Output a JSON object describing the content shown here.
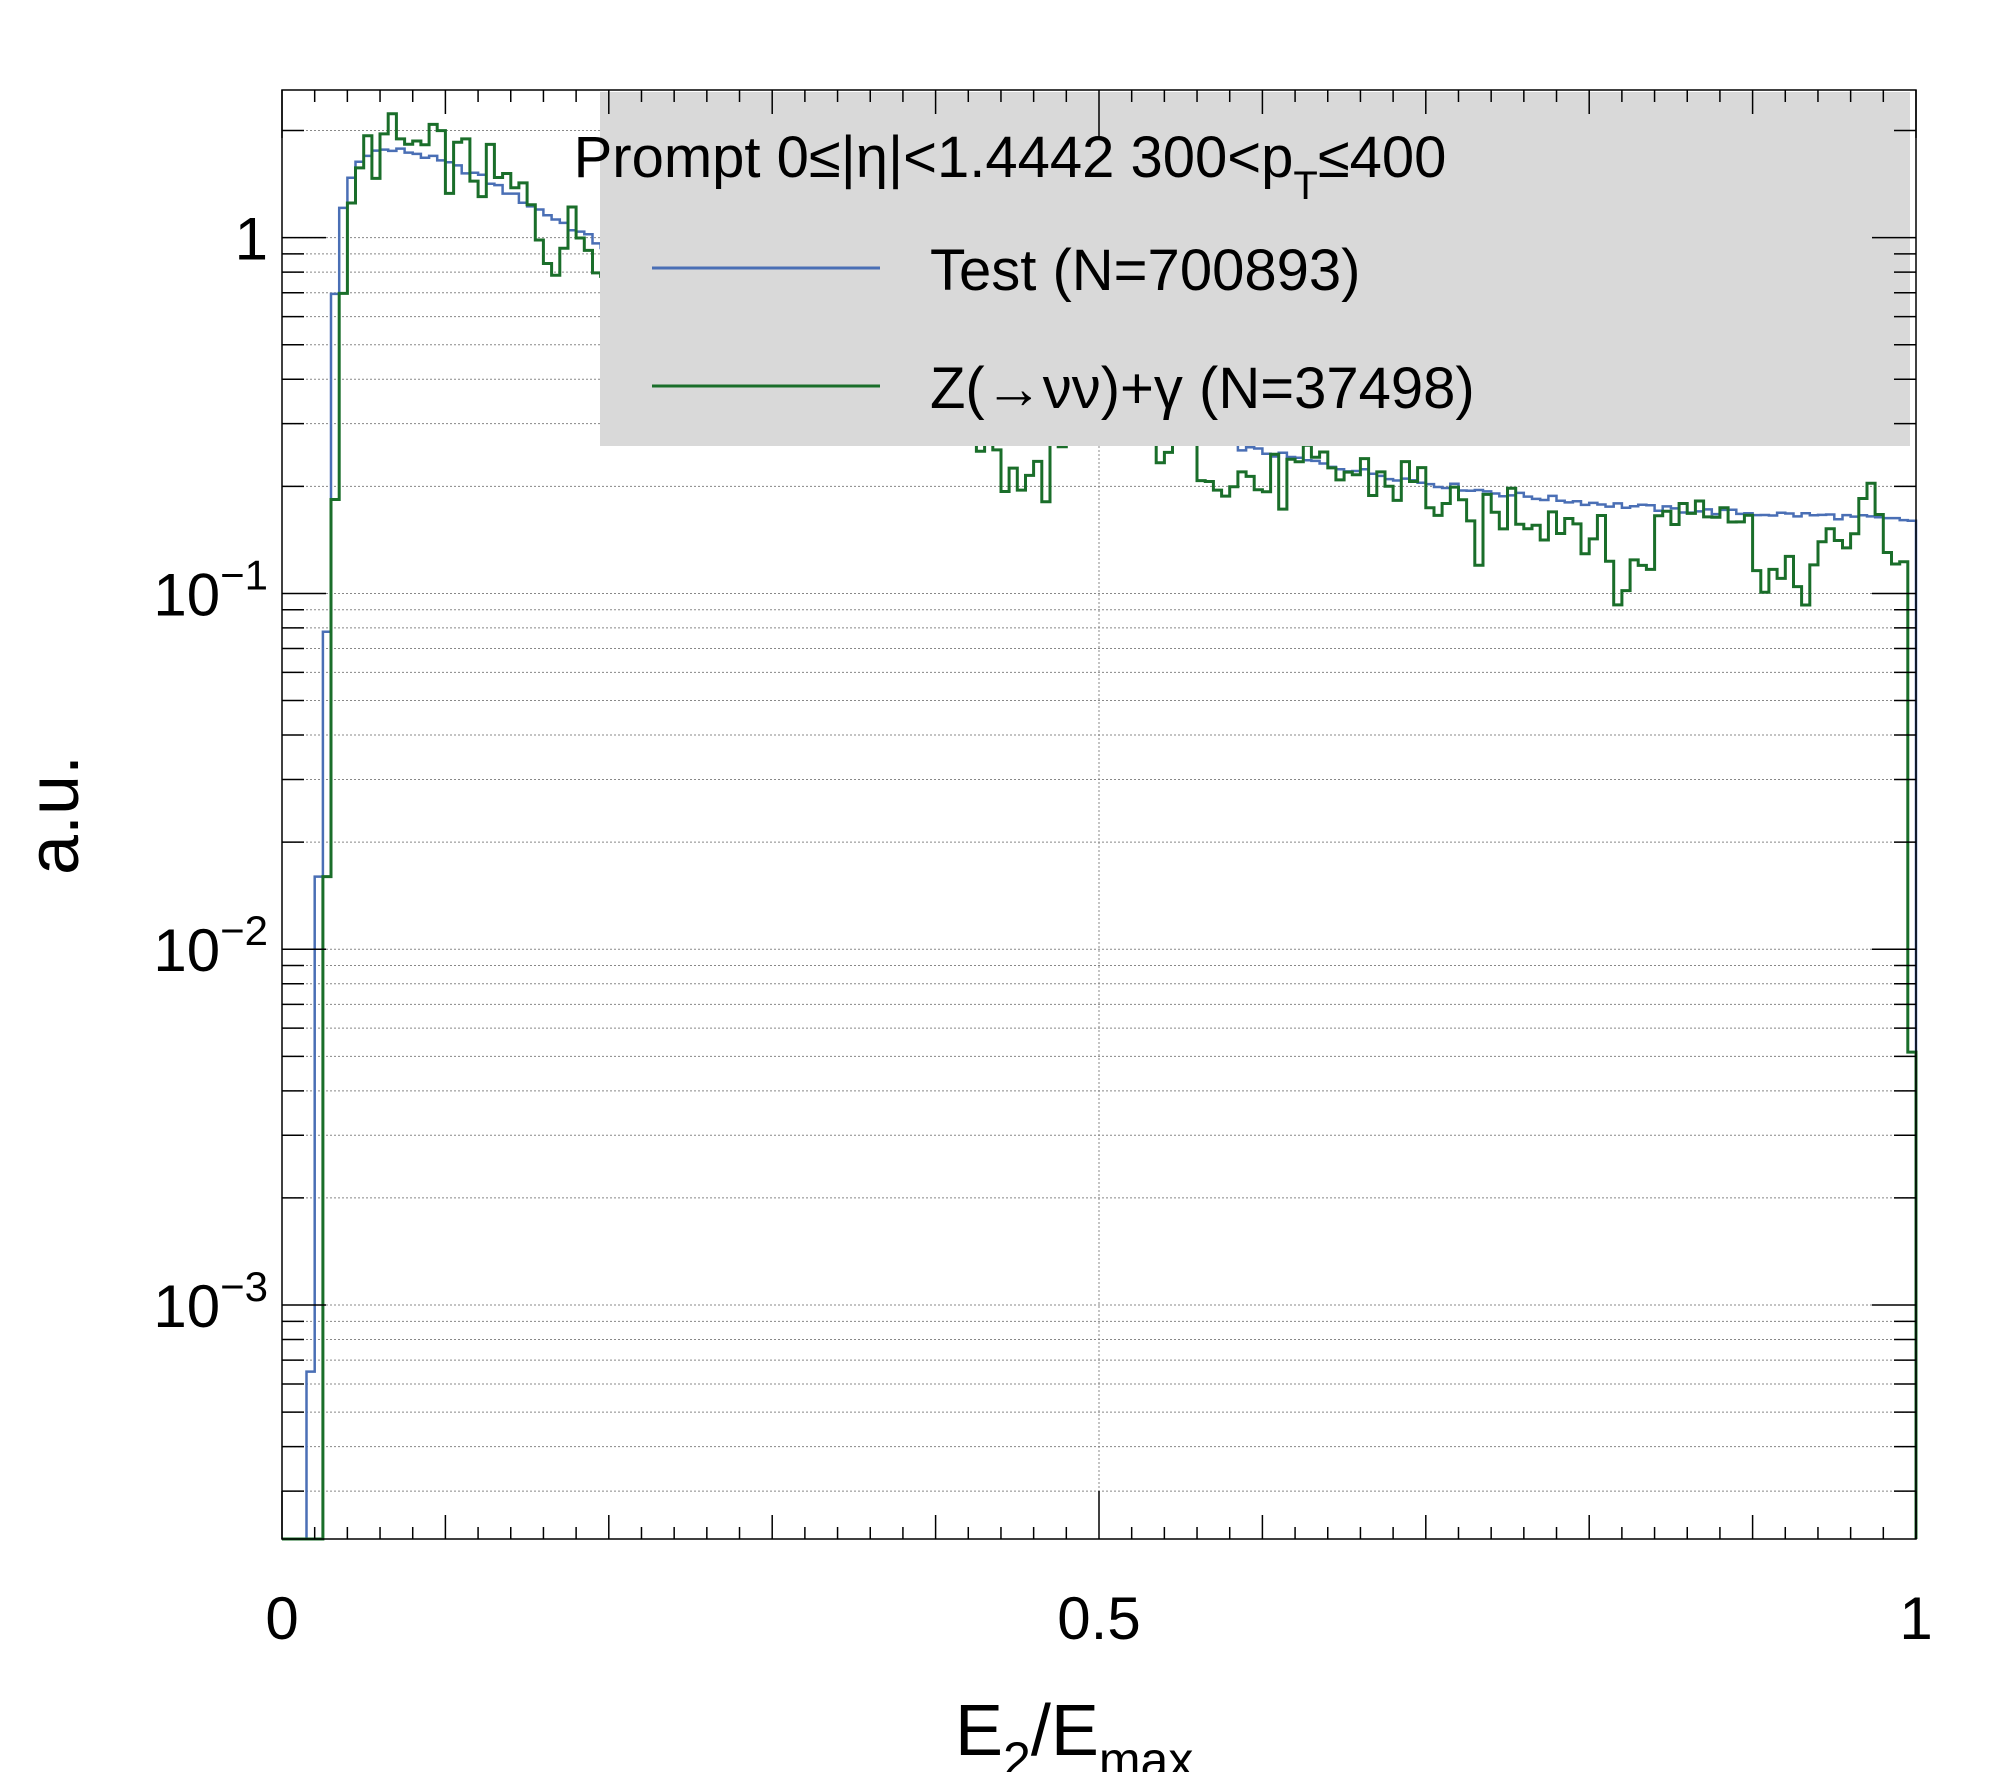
{
  "chart_data": {
    "type": "line",
    "subtype": "step-histogram",
    "title": "",
    "xlabel": {
      "base": "E",
      "sub1": "2",
      "mid": "/E",
      "sub2": "max"
    },
    "ylabel": "a.u.",
    "xlim": [
      0,
      1
    ],
    "ylim": [
      0.00022,
      2.6
    ],
    "yscale": "log",
    "grid": true,
    "x_ticks": [
      "0",
      "0.5",
      "1"
    ],
    "y_ticks": [
      {
        "value": 1,
        "base": "1",
        "exp": ""
      },
      {
        "value": 0.1,
        "base": "10",
        "exp": "−1"
      },
      {
        "value": 0.01,
        "base": "10",
        "exp": "−2"
      },
      {
        "value": 0.001,
        "base": "10",
        "exp": "−3"
      }
    ],
    "legend": {
      "placement": "top-right",
      "header": {
        "pre": "Prompt  0≤|η|<1.4442  300<p",
        "sub": "T",
        "post": "≤400"
      },
      "entries": [
        {
          "label": "Test (N=700893)",
          "color": "#4a6fb5"
        },
        {
          "label": "Z(→νν)+γ (N=37498)",
          "color": "#1a6e2a"
        }
      ],
      "background": "#d9d9d9"
    },
    "bins": {
      "count": 200,
      "range": [
        0,
        1
      ]
    },
    "series": [
      {
        "name": "Test (N=700893)",
        "color": "#4a6fb5",
        "points": [
          [
            0.0,
            0.00022
          ],
          [
            0.015,
            0.00022
          ],
          [
            0.0175,
            0.00065
          ],
          [
            0.02,
            0.0029
          ],
          [
            0.0225,
            0.016
          ],
          [
            0.025,
            0.036
          ],
          [
            0.0275,
            0.078
          ],
          [
            0.03,
            0.46
          ],
          [
            0.035,
            1.05
          ],
          [
            0.04,
            1.4
          ],
          [
            0.05,
            1.72
          ],
          [
            0.06,
            1.76
          ],
          [
            0.07,
            1.76
          ],
          [
            0.08,
            1.74
          ],
          [
            0.1,
            1.62
          ],
          [
            0.12,
            1.5
          ],
          [
            0.15,
            1.25
          ],
          [
            0.18,
            1.05
          ],
          [
            0.2,
            0.93
          ],
          [
            0.25,
            0.74
          ],
          [
            0.3,
            0.6
          ],
          [
            0.35,
            0.5
          ],
          [
            0.4,
            0.43
          ],
          [
            0.45,
            0.37
          ],
          [
            0.5,
            0.32
          ],
          [
            0.55,
            0.28
          ],
          [
            0.6,
            0.25
          ],
          [
            0.65,
            0.225
          ],
          [
            0.7,
            0.205
          ],
          [
            0.75,
            0.19
          ],
          [
            0.8,
            0.18
          ],
          [
            0.85,
            0.172
          ],
          [
            0.9,
            0.168
          ],
          [
            0.95,
            0.165
          ],
          [
            0.995,
            0.16
          ],
          [
            1.0,
            0.16
          ]
        ]
      },
      {
        "name": "Z(→νν)+γ (N=37498)",
        "color": "#1a6e2a",
        "points": [
          [
            0.0,
            0.00022
          ],
          [
            0.025,
            0.00022
          ],
          [
            0.0275,
            0.016
          ],
          [
            0.03,
            0.075
          ],
          [
            0.035,
            0.45
          ],
          [
            0.04,
            1.08
          ],
          [
            0.045,
            1.45
          ],
          [
            0.05,
            1.7
          ],
          [
            0.06,
            1.8
          ],
          [
            0.07,
            1.85
          ],
          [
            0.08,
            1.78
          ],
          [
            0.1,
            1.65
          ],
          [
            0.12,
            1.55
          ],
          [
            0.15,
            1.25
          ],
          [
            0.165,
            0.92
          ],
          [
            0.18,
            1.05
          ],
          [
            0.2,
            0.95
          ],
          [
            0.25,
            0.75
          ],
          [
            0.3,
            0.58
          ],
          [
            0.35,
            0.5
          ],
          [
            0.4,
            0.45
          ],
          [
            0.45,
            0.19
          ],
          [
            0.5,
            0.3
          ],
          [
            0.55,
            0.27
          ],
          [
            0.6,
            0.2
          ],
          [
            0.65,
            0.22
          ],
          [
            0.7,
            0.2
          ],
          [
            0.73,
            0.14
          ],
          [
            0.75,
            0.18
          ],
          [
            0.8,
            0.16
          ],
          [
            0.82,
            0.1
          ],
          [
            0.85,
            0.17
          ],
          [
            0.88,
            0.2
          ],
          [
            0.9,
            0.14
          ],
          [
            0.92,
            0.1
          ],
          [
            0.95,
            0.13
          ],
          [
            0.97,
            0.18
          ],
          [
            0.995,
            0.12
          ],
          [
            1.0,
            0.00022
          ]
        ]
      }
    ]
  }
}
